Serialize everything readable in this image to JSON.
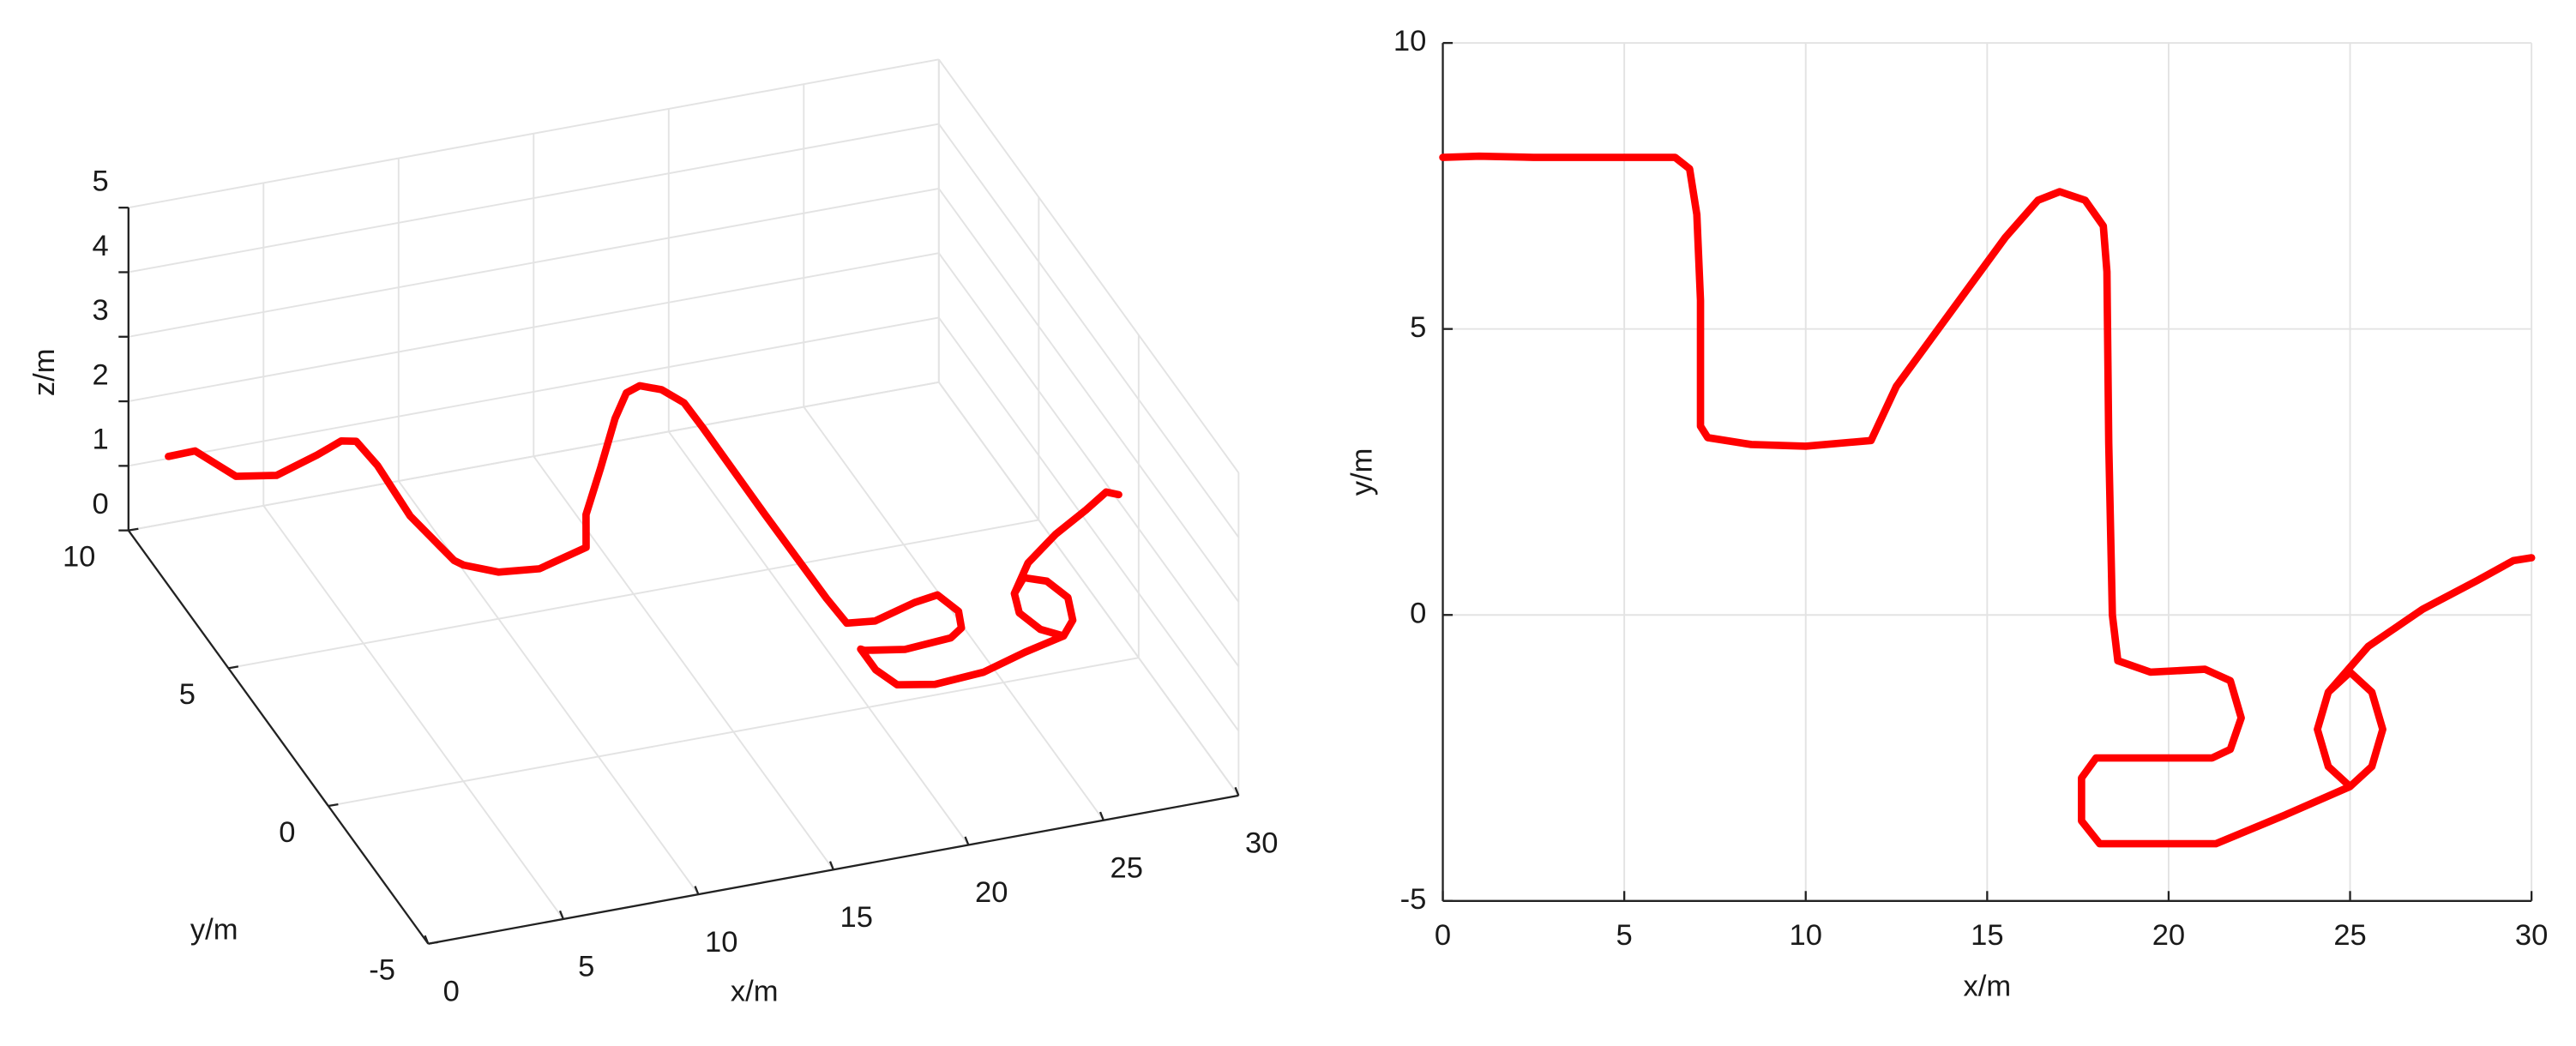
{
  "chart_data": [
    {
      "type": "line3d",
      "xlabel": "x/m",
      "ylabel": "y/m",
      "zlabel": "z/m",
      "color": "#ff0000",
      "grid": true,
      "xlim": [
        0,
        30
      ],
      "ylim": [
        -5,
        10
      ],
      "zlim": [
        0,
        5
      ],
      "xticks": [
        0,
        5,
        10,
        15,
        20,
        25,
        30
      ],
      "yticks": [
        -5,
        0,
        5,
        10
      ],
      "zticks": [
        0,
        1,
        2,
        3,
        4,
        5
      ],
      "x": [
        0,
        1,
        2.5,
        4,
        5.5,
        6.4,
        6.8,
        7,
        7.1,
        7.1,
        7.3,
        8.5,
        10,
        11.8,
        12.5,
        14,
        15.5,
        16.4,
        17,
        17.7,
        18.2,
        18.3,
        18.35,
        18.45,
        18.6,
        19.5,
        21,
        21.7,
        22,
        21.7,
        21.2,
        19.5,
        18,
        17.6,
        17.6,
        18.1,
        19.5,
        21.3,
        23.2,
        25,
        25.6,
        25.9,
        25.6,
        25,
        24.4,
        24.1,
        24.4,
        25,
        24.4,
        24.1,
        24.4,
        25.5,
        27,
        28.5,
        29.5,
        30
      ],
      "y": [
        8,
        8.02,
        8,
        8,
        8,
        8,
        7.8,
        7,
        5.5,
        3.3,
        3.1,
        2.98,
        2.95,
        3.05,
        4,
        5.3,
        6.6,
        7.25,
        7.4,
        7.25,
        6.8,
        6,
        3,
        0,
        -0.8,
        -1,
        -0.95,
        -1.15,
        -1.8,
        -2.35,
        -2.5,
        -2.5,
        -2.5,
        -2.85,
        -3.6,
        -4,
        -4,
        -4,
        -3.5,
        -3,
        -2.65,
        -2,
        -1.35,
        -1,
        -1.35,
        -2,
        -2.65,
        -3,
        -2.65,
        -2,
        -1.35,
        -0.55,
        0.1,
        0.6,
        0.95,
        1
      ],
      "z": [
        2,
        2,
        1.5,
        1.4,
        1.6,
        1.75,
        1.8,
        1.75,
        1.6,
        1.85,
        1.85,
        1.7,
        1.65,
        1.8,
        1.85,
        1.9,
        2,
        2.05,
        2.05,
        2,
        1.95,
        1.9,
        1.85,
        1.8,
        1.75,
        1.8,
        1.95,
        2.1,
        2.1,
        2.1,
        2.05,
        2,
        2.1,
        2.3,
        2.3,
        2.2,
        2.1,
        2.15,
        2.1,
        2,
        2.05,
        2.1,
        2.1,
        2.05,
        2,
        2,
        2,
        2,
        2,
        2,
        2,
        2.05,
        2.1,
        2.15,
        2.2,
        2.1
      ]
    },
    {
      "type": "line",
      "xlabel": "x/m",
      "ylabel": "y/m",
      "color": "#ff0000",
      "grid": true,
      "xlim": [
        0,
        30
      ],
      "ylim": [
        -5,
        10
      ],
      "xticks": [
        0,
        5,
        10,
        15,
        20,
        25,
        30
      ],
      "yticks": [
        -5,
        0,
        5,
        10
      ],
      "x": [
        0,
        1,
        2.5,
        4,
        5.5,
        6.4,
        6.8,
        7,
        7.1,
        7.1,
        7.3,
        8.5,
        10,
        11.8,
        12.5,
        14,
        15.5,
        16.4,
        17,
        17.7,
        18.2,
        18.3,
        18.35,
        18.45,
        18.6,
        19.5,
        21,
        21.7,
        22,
        21.7,
        21.2,
        19.5,
        18,
        17.6,
        17.6,
        18.1,
        19.5,
        21.3,
        23.2,
        25,
        25.6,
        25.9,
        25.6,
        25,
        24.4,
        24.1,
        24.4,
        25,
        24.4,
        24.1,
        24.4,
        25.5,
        27,
        28.5,
        29.5,
        30
      ],
      "y": [
        8,
        8.02,
        8,
        8,
        8,
        8,
        7.8,
        7,
        5.5,
        3.3,
        3.1,
        2.98,
        2.95,
        3.05,
        4,
        5.3,
        6.6,
        7.25,
        7.4,
        7.25,
        6.8,
        6,
        3,
        0,
        -0.8,
        -1,
        -0.95,
        -1.15,
        -1.8,
        -2.35,
        -2.5,
        -2.5,
        -2.5,
        -2.85,
        -3.6,
        -4,
        -4,
        -4,
        -3.5,
        -3,
        -2.65,
        -2,
        -1.35,
        -1,
        -1.35,
        -2,
        -2.65,
        -3,
        -2.65,
        -2,
        -1.35,
        -0.55,
        0.1,
        0.6,
        0.95,
        1
      ]
    }
  ]
}
